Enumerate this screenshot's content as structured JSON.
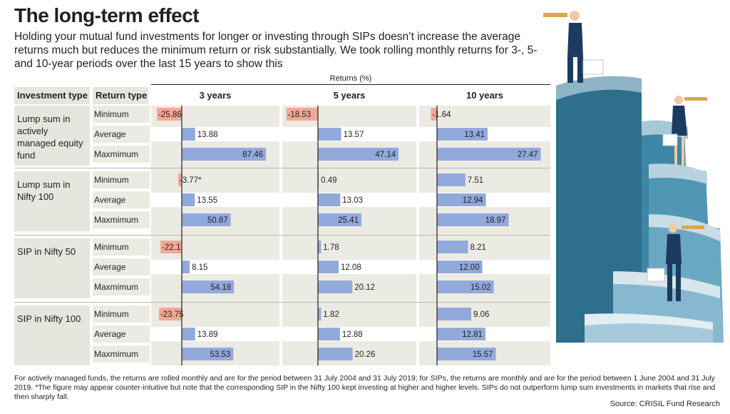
{
  "title": "The long-term effect",
  "subtitle": "Holding your mutual fund investments for longer or investing through SIPs doesn’t increase the average returns much but reduces the minimum return or risk substantially. We took rolling monthly returns for 3-, 5- and 10-year periods over the last 15 years to show this",
  "header": {
    "investment_type": "Investment type",
    "return_type": "Return type",
    "returns_pct": "Returns (%)"
  },
  "footnote": "For actively managed funds, the returns are rolled monthly and are for the period between 31 July 2004 and 31 July 2019; for SIPs, the returns are monthly and are for the period between 1 June 2004 and 31 July 2019. *The figure may appear counter-intuitive but note that the corresponding SIP in the Nifty 100 kept investing at higher and higher levels. SIPs do not outperform lump sum investments in markets that rise and then sharply fall.",
  "source": "Source: CRISIL Fund Research",
  "colors": {
    "positive_bar": "#92a9db",
    "negative_bar": "#f2a895",
    "row_background": "#ecebe3"
  },
  "chart_data": {
    "type": "bar",
    "orientation": "horizontal",
    "unit": "Returns (%)",
    "periods": [
      "3 years",
      "5 years",
      "10 years"
    ],
    "return_types": [
      "Minimum",
      "Average",
      "Maxmimum"
    ],
    "groups": [
      {
        "name": "Lump sum in actively managed equity fund",
        "rows": [
          {
            "label": "Minimum",
            "values": [
              -25.86,
              -18.53,
              -1.64
            ],
            "display": [
              "-25.86",
              "-18.53",
              "-1.64"
            ]
          },
          {
            "label": "Average",
            "values": [
              13.88,
              13.57,
              13.41
            ],
            "display": [
              "13.88",
              "13.57",
              "13.41"
            ]
          },
          {
            "label": "Maxmimum",
            "values": [
              87.46,
              47.14,
              27.47
            ],
            "display": [
              "87.46",
              "47.14",
              "27.47"
            ]
          }
        ]
      },
      {
        "name": "Lump sum in Nifty 100",
        "rows": [
          {
            "label": "Minimum",
            "values": [
              -3.77,
              0.49,
              7.51
            ],
            "display": [
              "-3.77*",
              "0.49",
              "7.51"
            ]
          },
          {
            "label": "Average",
            "values": [
              13.55,
              13.03,
              12.94
            ],
            "display": [
              "13.55",
              "13.03",
              "12.94"
            ]
          },
          {
            "label": "Maxmimum",
            "values": [
              50.87,
              25.41,
              18.97
            ],
            "display": [
              "50.87",
              "25.41",
              "18.97"
            ]
          }
        ]
      },
      {
        "name": "SIP in Nifty 50",
        "rows": [
          {
            "label": "Minimum",
            "values": [
              -22.1,
              1.78,
              8.21
            ],
            "display": [
              "-22.1",
              "1.78",
              "8.21"
            ]
          },
          {
            "label": "Average",
            "values": [
              8.15,
              12.08,
              12.0
            ],
            "display": [
              "8.15",
              "12.08",
              "12.00"
            ]
          },
          {
            "label": "Maxmimum",
            "values": [
              54.18,
              20.12,
              15.02
            ],
            "display": [
              "54.18",
              "20.12",
              "15.02"
            ]
          }
        ]
      },
      {
        "name": "SIP in Nifty 100",
        "rows": [
          {
            "label": "Minimum",
            "values": [
              -23.75,
              1.82,
              9.06
            ],
            "display": [
              "-23.75",
              "1.82",
              "9.06"
            ]
          },
          {
            "label": "Average",
            "values": [
              13.89,
              12.88,
              12.81
            ],
            "display": [
              "13.89",
              "12.88",
              "12.81"
            ]
          },
          {
            "label": "Maxmimum",
            "values": [
              53.53,
              20.26,
              15.57
            ],
            "display": [
              "53.53",
              "20.26",
              "15.57"
            ]
          }
        ]
      }
    ]
  }
}
